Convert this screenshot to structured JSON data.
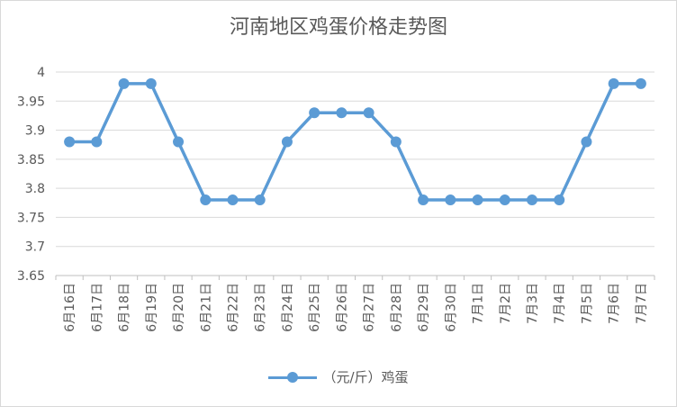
{
  "chart_data": {
    "type": "line",
    "title": "河南地区鸡蛋价格走势图",
    "categories": [
      "6月16日",
      "6月17日",
      "6月18日",
      "6月19日",
      "6月20日",
      "6月21日",
      "6月22日",
      "6月23日",
      "6月24日",
      "6月25日",
      "6月26日",
      "6月27日",
      "6月28日",
      "6月29日",
      "6月30日",
      "7月1日",
      "7月2日",
      "7月3日",
      "7月4日",
      "7月5日",
      "7月6日",
      "7月7日"
    ],
    "series": [
      {
        "name": "（元/斤）鸡蛋",
        "values": [
          3.88,
          3.88,
          3.98,
          3.98,
          3.88,
          3.78,
          3.78,
          3.78,
          3.88,
          3.93,
          3.93,
          3.93,
          3.88,
          3.78,
          3.78,
          3.78,
          3.78,
          3.78,
          3.78,
          3.88,
          3.98,
          3.98
        ]
      }
    ],
    "yticks": [
      "3.65",
      "3.7",
      "3.75",
      "3.8",
      "3.85",
      "3.9",
      "3.95",
      "4"
    ],
    "ylim": [
      3.65,
      4
    ],
    "grid": true,
    "legend": "bottom",
    "color": "#5b9bd5"
  }
}
